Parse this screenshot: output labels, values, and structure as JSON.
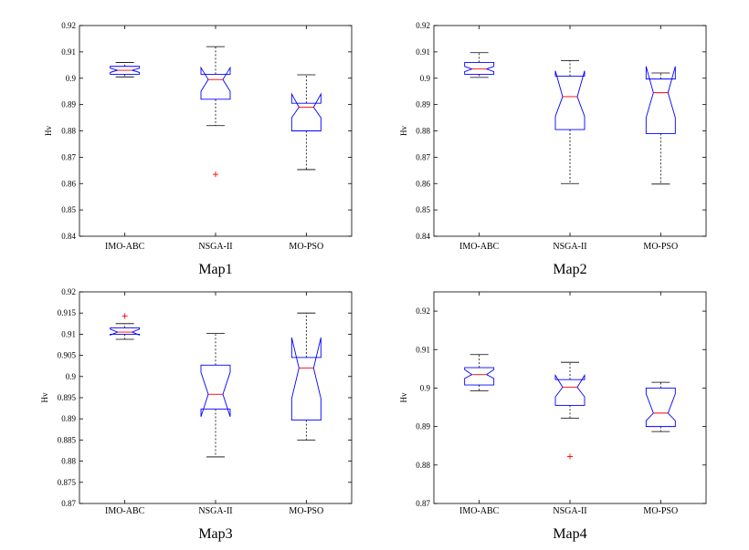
{
  "colors": {
    "box": "#0000ff",
    "median": "#ff0000",
    "whisker": "#000000",
    "outlier": "#ff0000"
  },
  "chart_data": [
    {
      "type": "boxplot",
      "title": "Map1",
      "ylabel": "Hv",
      "categories": [
        "IMO-ABC",
        "NSGA-II",
        "MO-PSO"
      ],
      "ylim": [
        0.84,
        0.92
      ],
      "yticks": [
        0.84,
        0.85,
        0.86,
        0.87,
        0.88,
        0.89,
        0.9,
        0.91,
        0.92
      ],
      "ytick_labels": [
        "0.84",
        "0.85",
        "0.86",
        "0.87",
        "0.88",
        "0.89",
        "0.9",
        "0.91",
        "0.92"
      ],
      "boxes": [
        {
          "category": "IMO-ABC",
          "whisker_low": 0.9005,
          "q1": 0.9015,
          "median": 0.903,
          "q3": 0.9045,
          "whisker_high": 0.906,
          "notch_low": 0.9022,
          "notch_high": 0.9038,
          "outliers": []
        },
        {
          "category": "NSGA-II",
          "whisker_low": 0.882,
          "q1": 0.892,
          "median": 0.8995,
          "q3": 0.9015,
          "whisker_high": 0.912,
          "notch_low": 0.895,
          "notch_high": 0.904,
          "outliers": [
            0.8635
          ]
        },
        {
          "category": "MO-PSO",
          "whisker_low": 0.8653,
          "q1": 0.88,
          "median": 0.889,
          "q3": 0.8905,
          "whisker_high": 0.9013,
          "notch_low": 0.885,
          "notch_high": 0.894,
          "outliers": []
        }
      ]
    },
    {
      "type": "boxplot",
      "title": "Map2",
      "ylabel": "Hv",
      "categories": [
        "IMO-ABC",
        "NSGA-II",
        "MO-PSO"
      ],
      "ylim": [
        0.84,
        0.92
      ],
      "yticks": [
        0.84,
        0.85,
        0.86,
        0.87,
        0.88,
        0.89,
        0.9,
        0.91,
        0.92
      ],
      "ytick_labels": [
        "0.84",
        "0.85",
        "0.86",
        "0.87",
        "0.88",
        "0.89",
        "0.9",
        "0.91",
        "0.92"
      ],
      "boxes": [
        {
          "category": "IMO-ABC",
          "whisker_low": 0.9003,
          "q1": 0.9015,
          "median": 0.9035,
          "q3": 0.906,
          "whisker_high": 0.9097,
          "notch_low": 0.9025,
          "notch_high": 0.9045,
          "outliers": []
        },
        {
          "category": "NSGA-II",
          "whisker_low": 0.86,
          "q1": 0.8805,
          "median": 0.893,
          "q3": 0.9008,
          "whisker_high": 0.9067,
          "notch_low": 0.8855,
          "notch_high": 0.9028,
          "outliers": []
        },
        {
          "category": "MO-PSO",
          "whisker_low": 0.8598,
          "q1": 0.879,
          "median": 0.8945,
          "q3": 0.8997,
          "whisker_high": 0.902,
          "notch_low": 0.885,
          "notch_high": 0.9045,
          "outliers": []
        }
      ]
    },
    {
      "type": "boxplot",
      "title": "Map3",
      "ylabel": "Hv",
      "categories": [
        "IMO-ABC",
        "NSGA-II",
        "MO-PSO"
      ],
      "ylim": [
        0.87,
        0.92
      ],
      "yticks": [
        0.87,
        0.875,
        0.88,
        0.885,
        0.89,
        0.895,
        0.9,
        0.905,
        0.91,
        0.915,
        0.92
      ],
      "ytick_labels": [
        "0.87",
        "0.875",
        "0.88",
        "0.885",
        "0.89",
        "0.895",
        "0.9",
        "0.905",
        "0.91",
        "0.915",
        "0.92"
      ],
      "boxes": [
        {
          "category": "IMO-ABC",
          "whisker_low": 0.9088,
          "q1": 0.91,
          "median": 0.9105,
          "q3": 0.9115,
          "whisker_high": 0.9125,
          "notch_low": 0.9098,
          "notch_high": 0.9112,
          "outliers": [
            0.9143
          ]
        },
        {
          "category": "NSGA-II",
          "whisker_low": 0.881,
          "q1": 0.8923,
          "median": 0.8958,
          "q3": 0.9027,
          "whisker_high": 0.9102,
          "notch_low": 0.8905,
          "notch_high": 0.901,
          "outliers": []
        },
        {
          "category": "MO-PSO",
          "whisker_low": 0.885,
          "q1": 0.8897,
          "median": 0.902,
          "q3": 0.9045,
          "whisker_high": 0.915,
          "notch_low": 0.8948,
          "notch_high": 0.9092,
          "outliers": []
        }
      ]
    },
    {
      "type": "boxplot",
      "title": "Map4",
      "ylabel": "Hv",
      "categories": [
        "IMO-ABC",
        "NSGA-II",
        "MO-PSO"
      ],
      "ylim": [
        0.87,
        0.925
      ],
      "yticks": [
        0.87,
        0.88,
        0.89,
        0.9,
        0.91,
        0.92
      ],
      "ytick_labels": [
        "0.87",
        "0.88",
        "0.89",
        "0.9",
        "0.91",
        "0.92"
      ],
      "boxes": [
        {
          "category": "IMO-ABC",
          "whisker_low": 0.8993,
          "q1": 0.9008,
          "median": 0.9035,
          "q3": 0.9053,
          "whisker_high": 0.9087,
          "notch_low": 0.9025,
          "notch_high": 0.9048,
          "outliers": []
        },
        {
          "category": "NSGA-II",
          "whisker_low": 0.8922,
          "q1": 0.8955,
          "median": 0.9002,
          "q3": 0.9022,
          "whisker_high": 0.9067,
          "notch_low": 0.8977,
          "notch_high": 0.9033,
          "outliers": [
            0.8822
          ]
        },
        {
          "category": "MO-PSO",
          "whisker_low": 0.8887,
          "q1": 0.89,
          "median": 0.8935,
          "q3": 0.9,
          "whisker_high": 0.9015,
          "notch_low": 0.8915,
          "notch_high": 0.8985,
          "outliers": []
        }
      ]
    }
  ]
}
